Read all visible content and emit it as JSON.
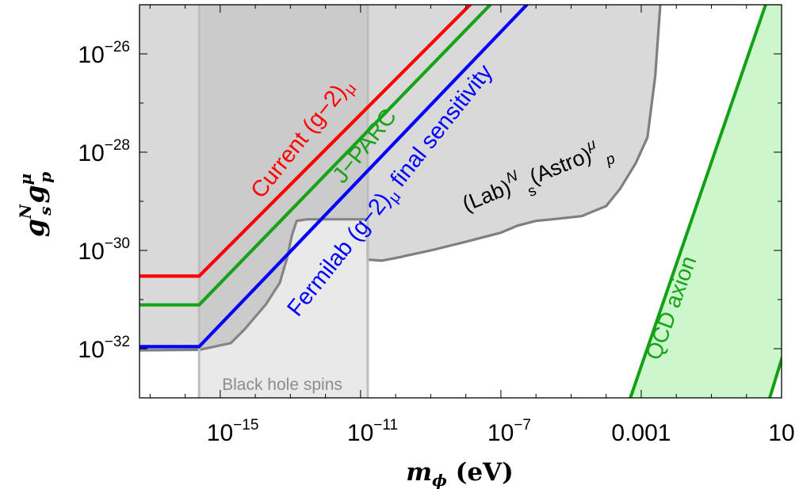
{
  "chart_data": {
    "type": "area",
    "x_scale": "log",
    "y_scale": "log",
    "xlim": [
      5e-18,
      10
    ],
    "ylim": [
      1e-33,
      1e-25
    ],
    "grid": false,
    "legend": "none",
    "xlabel": "m_ϕ (eV)",
    "ylabel": "g_s^N g_p^μ",
    "x_ticks": [
      {
        "value": 1e-15,
        "base": "10",
        "exp": "−15"
      },
      {
        "value": 1e-11,
        "base": "10",
        "exp": "−11"
      },
      {
        "value": 1e-07,
        "base": "10",
        "exp": "−7"
      },
      {
        "value": 0.001,
        "base": "0.001",
        "exp": ""
      },
      {
        "value": 10,
        "base": "10",
        "exp": ""
      }
    ],
    "y_ticks": [
      {
        "value": 1e-26,
        "base": "10",
        "exp": "−26"
      },
      {
        "value": 1e-28,
        "base": "10",
        "exp": "−28"
      },
      {
        "value": 1e-30,
        "base": "10",
        "exp": "−30"
      },
      {
        "value": 1e-32,
        "base": "10",
        "exp": "−32"
      }
    ],
    "regions": [
      {
        "name": "(Lab)^N_s(Astro)^μ_p",
        "fill": "#d9d9d9",
        "stroke": "#7f7f7f",
        "points": [
          [
            5e-18,
            9.3e-33
          ],
          [
            2.5e-16,
            9.5e-33
          ],
          [
            2e-15,
            1.3e-32
          ],
          [
            5e-15,
            2.5e-32
          ],
          [
            2e-14,
            8e-32
          ],
          [
            5e-14,
            2.2e-31
          ],
          [
            8e-14,
            7e-31
          ],
          [
            1.1e-13,
            2e-30
          ],
          [
            1.5e-13,
            4e-30
          ],
          [
            3e-13,
            4.3e-30
          ],
          [
            1.6e-11,
            4.3e-30
          ],
          [
            1.6e-11,
            6.5e-31
          ],
          [
            4e-11,
            6.2e-31
          ],
          [
            1e-10,
            7e-31
          ],
          [
            1e-09,
            1e-30
          ],
          [
            1e-08,
            1.5e-30
          ],
          [
            1e-07,
            2.3e-30
          ],
          [
            3e-07,
            3.2e-30
          ],
          [
            1e-06,
            4e-30
          ],
          [
            3e-06,
            4.3e-30
          ],
          [
            2e-05,
            5e-30
          ],
          [
            0.0001,
            8e-30
          ],
          [
            0.00025,
            1.8e-29
          ],
          [
            0.0007,
            6e-29
          ],
          [
            0.0015,
            2e-28
          ],
          [
            0.0025,
            3.5e-27
          ],
          [
            0.0035,
            1e-25
          ],
          [
            5e-18,
            1e-25
          ]
        ]
      },
      {
        "name": "Black hole spins",
        "fill": "#c8c8c8",
        "x_range": [
          2.5e-16,
          1.6e-11
        ]
      },
      {
        "name": "QCD axion",
        "fill": "#ccf7cc",
        "stroke": "#14a014",
        "lines": [
          [
            [
              0.00049,
              1e-33
            ],
            [
              3.5,
              1e-25
            ]
          ],
          [
            [
              4.6,
              1e-33
            ],
            [
              20,
              3e-32
            ]
          ]
        ]
      }
    ],
    "series": [
      {
        "name": "Current (g−2)_μ",
        "color": "#ff0000",
        "x": [
          5e-18,
          2.5e-16,
          3.5e-08
        ],
        "y": [
          3e-31,
          3e-31,
          2e-25
        ]
      },
      {
        "name": "J−PARC",
        "color": "#17a317",
        "x": [
          5e-18,
          2.5e-16,
          1.1e-07
        ],
        "y": [
          7.8e-32,
          7.8e-32,
          1.8e-25
        ]
      },
      {
        "name": "Fermilab (g−2)_μ final sensitivity",
        "color": "#0000ff",
        "x": [
          5e-18,
          2.5e-16,
          7e-07
        ],
        "y": [
          1.1e-32,
          1.1e-32,
          1.2e-25
        ]
      }
    ]
  }
}
